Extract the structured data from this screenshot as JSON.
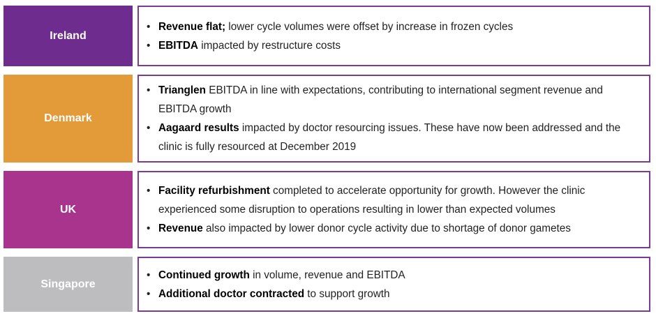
{
  "rows": [
    {
      "label": "Ireland",
      "bullets": [
        {
          "bold": "Revenue flat;",
          "text": " lower cycle volumes were offset by increase in frozen cycles"
        },
        {
          "bold": "EBITDA",
          "text": " impacted by restructure costs"
        }
      ]
    },
    {
      "label": "Denmark",
      "bullets": [
        {
          "bold": "Trianglen",
          "text": " EBITDA in line with expectations, contributing to international segment revenue and EBITDA growth"
        },
        {
          "bold": "Aagaard results",
          "text": " impacted by doctor resourcing issues. These have now been addressed and the clinic is fully resourced at December 2019"
        }
      ]
    },
    {
      "label": "UK",
      "bullets": [
        {
          "bold": "Facility refurbishment",
          "text": " completed to accelerate opportunity for growth. However the clinic experienced some disruption to operations resulting in lower than expected volumes"
        },
        {
          "bold": "Revenue",
          "text": " also impacted by lower donor cycle activity due to shortage of donor gametes"
        }
      ]
    },
    {
      "label": "Singapore",
      "bullets": [
        {
          "bold": "Continued growth",
          "text": " in volume, revenue and EBITDA"
        },
        {
          "bold": "Additional doctor contracted",
          "text": " to support growth"
        }
      ]
    }
  ]
}
